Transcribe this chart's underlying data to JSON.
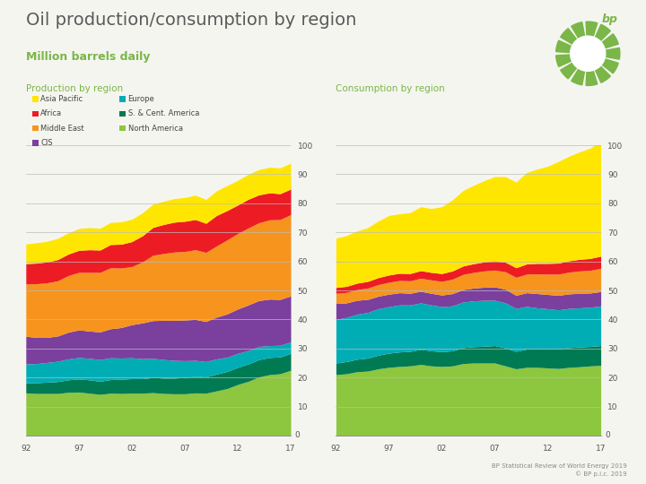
{
  "title": "Oil production/consumption by region",
  "subtitle": "Million barrels daily",
  "prod_label": "Production by region",
  "cons_label": "Consumption by region",
  "footer": "BP Statistical Review of World Energy 2019\n© BP p.l.c. 2019",
  "background_color": "#f5f5f0",
  "title_color": "#5a5a5a",
  "subtitle_color": "#7ab648",
  "label_color": "#7ab648",
  "years": [
    1992,
    1993,
    1994,
    1995,
    1996,
    1997,
    1998,
    1999,
    2000,
    2001,
    2002,
    2003,
    2004,
    2005,
    2006,
    2007,
    2008,
    2009,
    2010,
    2011,
    2012,
    2013,
    2014,
    2015,
    2016,
    2017
  ],
  "regions": [
    "North America",
    "S. & Cent. America",
    "Europe",
    "CIS",
    "Middle East",
    "Africa",
    "Asia Pacific"
  ],
  "colors": [
    "#8dc63f",
    "#007a53",
    "#00adb5",
    "#7b3f9e",
    "#f7941d",
    "#ed1c24",
    "#ffe600"
  ],
  "production": {
    "North America": [
      14.7,
      14.5,
      14.5,
      14.5,
      14.9,
      15.0,
      14.6,
      14.2,
      14.6,
      14.5,
      14.6,
      14.6,
      14.8,
      14.5,
      14.4,
      14.4,
      14.7,
      14.6,
      15.4,
      16.2,
      17.6,
      18.7,
      20.2,
      21.0,
      21.3,
      22.5
    ],
    "S. & Cent. America": [
      3.5,
      3.7,
      3.9,
      4.1,
      4.3,
      4.5,
      4.6,
      4.5,
      4.7,
      4.9,
      5.0,
      5.0,
      5.2,
      5.3,
      5.4,
      5.6,
      5.7,
      5.6,
      5.8,
      5.9,
      5.9,
      6.0,
      6.0,
      5.9,
      5.8,
      5.8
    ],
    "Europe": [
      6.5,
      6.6,
      6.8,
      7.0,
      7.2,
      7.4,
      7.4,
      7.5,
      7.5,
      7.3,
      7.2,
      6.9,
      6.6,
      6.4,
      6.1,
      5.8,
      5.5,
      5.3,
      5.2,
      4.9,
      4.8,
      4.6,
      4.5,
      4.1,
      4.0,
      4.0
    ],
    "CIS": [
      9.5,
      9.0,
      8.6,
      8.7,
      9.2,
      9.5,
      9.4,
      9.5,
      10.0,
      10.5,
      11.4,
      12.3,
      13.0,
      13.5,
      13.8,
      14.0,
      14.1,
      13.8,
      14.4,
      14.9,
      15.3,
      15.7,
      15.8,
      16.0,
      15.8,
      15.8
    ],
    "Middle East": [
      18.0,
      18.5,
      18.8,
      19.0,
      19.5,
      19.8,
      20.2,
      20.5,
      21.0,
      20.5,
      20.0,
      21.0,
      22.5,
      23.0,
      23.5,
      23.6,
      24.0,
      23.8,
      24.5,
      25.5,
      26.0,
      26.5,
      26.8,
      27.3,
      27.5,
      28.0
    ],
    "Africa": [
      7.0,
      7.1,
      7.2,
      7.3,
      7.4,
      7.6,
      7.8,
      7.7,
      8.0,
      8.2,
      8.6,
      9.0,
      9.6,
      10.0,
      10.3,
      10.4,
      10.4,
      10.0,
      10.5,
      10.1,
      9.8,
      9.9,
      9.6,
      9.3,
      8.9,
      8.8
    ],
    "Asia Pacific": [
      6.8,
      7.0,
      7.1,
      7.3,
      7.3,
      7.5,
      7.6,
      7.5,
      7.6,
      7.7,
      7.7,
      7.9,
      8.0,
      8.0,
      8.1,
      8.2,
      8.4,
      8.2,
      8.5,
      8.6,
      8.5,
      8.6,
      8.7,
      8.8,
      8.9,
      8.9
    ]
  },
  "consumption": {
    "North America": [
      21.0,
      21.3,
      22.0,
      22.2,
      23.0,
      23.5,
      23.8,
      24.0,
      24.5,
      24.0,
      23.8,
      24.0,
      24.8,
      25.0,
      25.0,
      25.0,
      24.0,
      23.0,
      23.5,
      23.5,
      23.3,
      23.1,
      23.5,
      23.7,
      24.0,
      24.2
    ],
    "S. & Cent. America": [
      4.0,
      4.2,
      4.3,
      4.5,
      4.7,
      4.9,
      5.0,
      5.0,
      5.2,
      5.2,
      5.1,
      5.2,
      5.5,
      5.6,
      5.8,
      6.0,
      6.2,
      6.0,
      6.3,
      6.5,
      6.6,
      6.7,
      6.8,
      6.8,
      6.7,
      6.8
    ],
    "Europe": [
      15.0,
      15.2,
      15.5,
      15.7,
      16.0,
      16.0,
      16.2,
      16.0,
      16.0,
      15.8,
      15.5,
      15.5,
      15.7,
      15.8,
      15.8,
      15.6,
      15.5,
      14.8,
      14.7,
      14.0,
      13.8,
      13.5,
      13.5,
      13.5,
      13.5,
      13.7
    ],
    "CIS": [
      5.5,
      5.0,
      4.8,
      4.5,
      4.3,
      4.3,
      4.2,
      4.0,
      4.0,
      4.0,
      4.0,
      4.2,
      4.3,
      4.4,
      4.5,
      4.6,
      4.7,
      4.5,
      4.7,
      4.9,
      4.9,
      5.0,
      5.0,
      5.0,
      4.9,
      4.9
    ],
    "Middle East": [
      3.5,
      3.6,
      3.7,
      3.9,
      4.0,
      4.1,
      4.2,
      4.3,
      4.5,
      4.6,
      4.7,
      5.0,
      5.2,
      5.4,
      5.6,
      5.8,
      6.0,
      6.2,
      6.4,
      6.8,
      7.0,
      7.3,
      7.5,
      7.7,
      7.8,
      8.0
    ],
    "Africa": [
      2.0,
      2.1,
      2.2,
      2.3,
      2.4,
      2.5,
      2.5,
      2.5,
      2.6,
      2.6,
      2.7,
      2.8,
      2.9,
      3.0,
      3.1,
      3.2,
      3.3,
      3.3,
      3.5,
      3.6,
      3.7,
      3.8,
      3.9,
      4.0,
      4.1,
      4.2
    ],
    "Asia Pacific": [
      17.0,
      17.5,
      18.0,
      18.5,
      19.5,
      20.5,
      20.5,
      21.0,
      22.0,
      22.0,
      23.0,
      24.5,
      26.0,
      27.0,
      28.0,
      29.0,
      29.5,
      29.5,
      31.5,
      32.5,
      33.5,
      35.0,
      36.0,
      37.0,
      38.0,
      39.5
    ]
  },
  "ylim": [
    0,
    100
  ],
  "yticks": [
    10,
    20,
    30,
    40,
    50,
    60,
    70,
    80,
    90,
    100
  ],
  "xticks_years": [
    1992,
    1997,
    2002,
    2007,
    2012,
    2017
  ],
  "xtick_labels": [
    "92",
    "97",
    "02",
    "07",
    "12",
    "17"
  ],
  "legend_col1": [
    "Asia Pacific",
    "Africa",
    "Middle East",
    "CIS"
  ],
  "legend_col2": [
    "Europe",
    "S. & Cent. America",
    "North America"
  ]
}
